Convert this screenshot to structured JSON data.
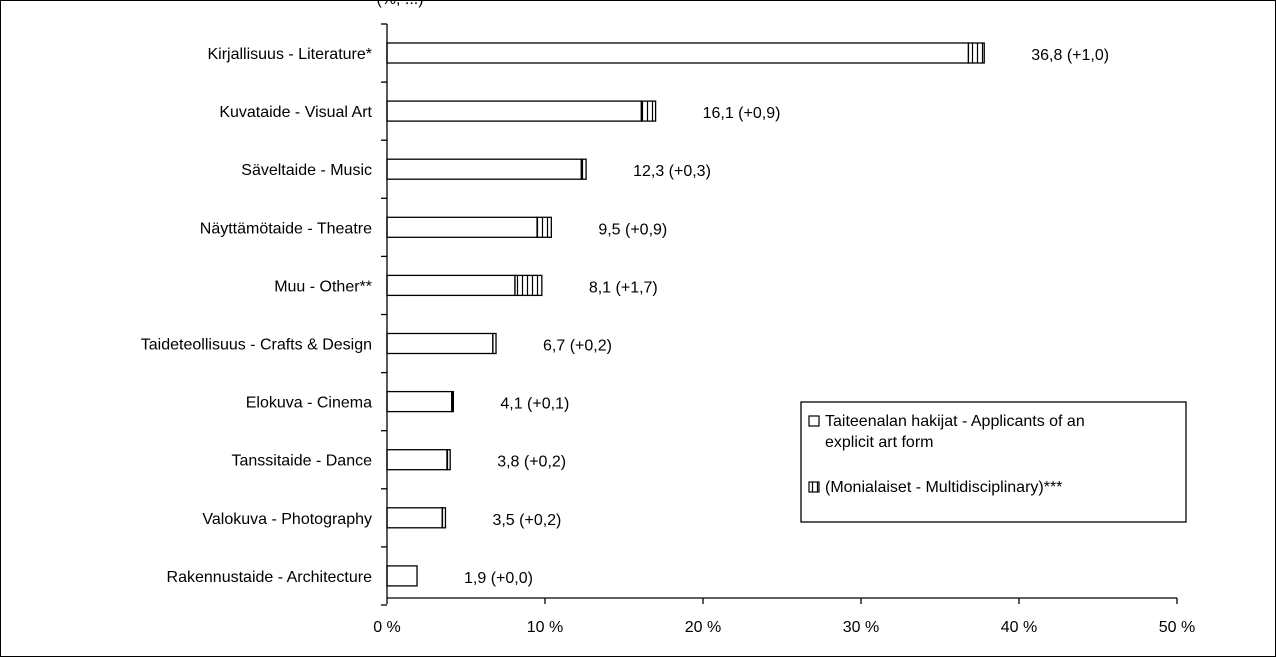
{
  "chart_data": {
    "type": "bar",
    "orientation": "horizontal",
    "stacked": true,
    "title_fragment": "(%, ...)",
    "categories": [
      "Kirjallisuus - Literature*",
      "Kuvataide - Visual Art",
      "Säveltaide - Music",
      "Näyttämötaide - Theatre",
      "Muu - Other**",
      "Taideteollisuus - Crafts & Design",
      "Elokuva - Cinema",
      "Tanssitaide - Dance",
      "Valokuva - Photography",
      "Rakennustaide - Architecture"
    ],
    "series": [
      {
        "name": "Taiteenalan hakijat - Applicants of an explicit art form",
        "pattern": "plain",
        "values": [
          36.8,
          16.1,
          12.3,
          9.5,
          8.1,
          6.7,
          4.1,
          3.8,
          3.5,
          1.9
        ]
      },
      {
        "name": "(Monialaiset - Multidisciplinary)***",
        "pattern": "vertical-lines",
        "values": [
          1.0,
          0.9,
          0.3,
          0.9,
          1.7,
          0.2,
          0.1,
          0.2,
          0.2,
          0.0
        ]
      }
    ],
    "data_labels": [
      "36,8 (+1,0)",
      "16,1 (+0,9)",
      "12,3 (+0,3)",
      "9,5 (+0,9)",
      "8,1 (+1,7)",
      "6,7 (+0,2)",
      "4,1 (+0,1)",
      "3,8 (+0,2)",
      "3,5 (+0,2)",
      "1,9 (+0,0)"
    ],
    "xlim": [
      0,
      50
    ],
    "xticks": [
      0,
      10,
      20,
      30,
      40,
      50
    ],
    "xtick_labels": [
      "0 %",
      "10 %",
      "20 %",
      "30 %",
      "40 %",
      "50 %"
    ],
    "legend": {
      "position": "lower-right",
      "entries": [
        {
          "lines": [
            "Taiteenalan hakijat - Applicants of an",
            "explicit art form"
          ],
          "pattern": "plain"
        },
        {
          "lines": [
            "(Monialaiset - Multidisciplinary)***"
          ],
          "pattern": "vertical-lines"
        }
      ]
    },
    "grid": false,
    "colors": {
      "bar_fill": "#ffffff",
      "stroke": "#000000"
    }
  }
}
